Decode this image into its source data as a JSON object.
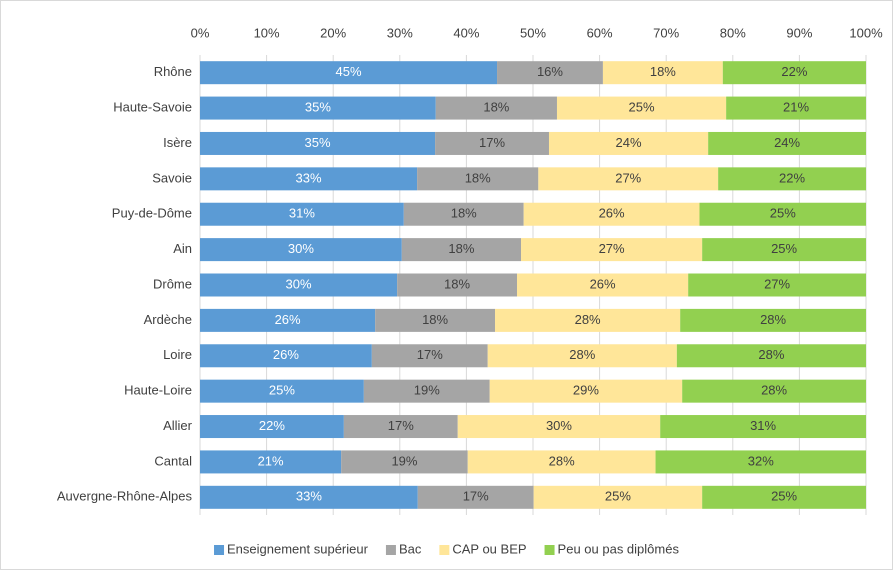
{
  "chart_data": {
    "type": "stacked-bar-horizontal",
    "categories": [
      "Rhône",
      "Haute-Savoie",
      "Isère",
      "Savoie",
      "Puy-de-Dôme",
      "Ain",
      "Drôme",
      "Ardèche",
      "Loire",
      "Haute-Loire",
      "Allier",
      "Cantal",
      "Auvergne-Rhône-Alpes"
    ],
    "series": [
      {
        "name": "Enseignement supérieur",
        "color": "#5b9bd5",
        "label_color": "#ffffff",
        "values": [
          44.6,
          35.4,
          35.3,
          32.6,
          30.6,
          30.3,
          29.6,
          26.3,
          25.8,
          24.6,
          21.6,
          21.2,
          32.7
        ],
        "value_labels": [
          "45%",
          "35%",
          "35%",
          "33%",
          "31%",
          "30%",
          "30%",
          "26%",
          "26%",
          "25%",
          "22%",
          "21%",
          "33%"
        ]
      },
      {
        "name": "Bac",
        "color": "#a5a5a5",
        "label_color": "#404040",
        "values": [
          15.9,
          18.2,
          17.1,
          18.2,
          18.0,
          17.9,
          18.0,
          18.0,
          17.4,
          18.9,
          17.1,
          19.0,
          17.4
        ],
        "value_labels": [
          "16%",
          "18%",
          "17%",
          "18%",
          "18%",
          "18%",
          "18%",
          "18%",
          "17%",
          "19%",
          "17%",
          "19%",
          "17%"
        ]
      },
      {
        "name": "CAP ou BEP",
        "color": "#ffe699",
        "label_color": "#404040",
        "values": [
          18.0,
          25.4,
          23.9,
          27.0,
          26.4,
          27.2,
          25.7,
          27.8,
          28.4,
          28.9,
          30.4,
          28.2,
          25.3
        ],
        "value_labels": [
          "18%",
          "25%",
          "24%",
          "27%",
          "26%",
          "27%",
          "26%",
          "28%",
          "28%",
          "29%",
          "30%",
          "28%",
          "25%"
        ]
      },
      {
        "name": "Peu ou pas diplômés",
        "color": "#92d050",
        "label_color": "#404040",
        "values": [
          21.5,
          21.0,
          23.7,
          22.2,
          25.0,
          24.6,
          26.7,
          27.9,
          28.4,
          27.6,
          30.9,
          31.6,
          24.6
        ],
        "value_labels": [
          "22%",
          "21%",
          "24%",
          "22%",
          "25%",
          "25%",
          "27%",
          "28%",
          "28%",
          "28%",
          "31%",
          "32%",
          "25%"
        ]
      }
    ],
    "xlim": [
      0,
      100
    ],
    "xticks": [
      {
        "value": 0,
        "label": "0%"
      },
      {
        "value": 10,
        "label": "10%"
      },
      {
        "value": 20,
        "label": "20%"
      },
      {
        "value": 30,
        "label": "30%"
      },
      {
        "value": 40,
        "label": "40%"
      },
      {
        "value": 50,
        "label": "50%"
      },
      {
        "value": 60,
        "label": "60%"
      },
      {
        "value": 70,
        "label": "70%"
      },
      {
        "value": 80,
        "label": "80%"
      },
      {
        "value": 90,
        "label": "90%"
      },
      {
        "value": 100,
        "label": "100%"
      }
    ],
    "grid": true,
    "legend": "bottom"
  }
}
